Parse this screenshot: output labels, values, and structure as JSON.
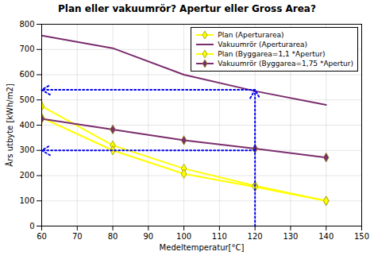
{
  "chart_data": {
    "type": "line",
    "title": "Plan eller vakuumrör? Apertur eller Gross Area?",
    "xlabel": "Medeltemperatur[°C]",
    "ylabel": "Års utbyte [kWh/m2]",
    "xlim": [
      60,
      150
    ],
    "ylim": [
      0,
      800
    ],
    "xticks": [
      60,
      70,
      80,
      90,
      100,
      110,
      120,
      130,
      140,
      150
    ],
    "yticks": [
      0,
      100,
      200,
      300,
      400,
      500,
      600,
      700,
      800
    ],
    "grid": true,
    "legend": "upper right",
    "x": [
      60,
      80,
      100,
      120,
      140
    ],
    "series": [
      {
        "name": "Plan (Aperturarea)",
        "color": "#ffff00",
        "marker": "diamond",
        "values": [
          475,
          320,
          228,
          160,
          100
        ]
      },
      {
        "name": "Vakuumrör (Aperturarea)",
        "color": "#7b2d6e",
        "marker": "none",
        "values": [
          755,
          705,
          600,
          535,
          480
        ]
      },
      {
        "name": "Plan (Byggarea=1,1 *Apertur)",
        "color": "#ffff00",
        "marker": "diamond",
        "values": [
          430,
          300,
          207,
          155,
          100
        ]
      },
      {
        "name": "Vakuumrör (Byggarea=1,75 *Apertur)",
        "color": "#7b2d6e",
        "marker": "diamond",
        "values": [
          425,
          383,
          340,
          307,
          272
        ]
      }
    ],
    "annotations": [
      {
        "x1": 120,
        "y1": 540,
        "x2": 60,
        "y2": 540,
        "color": "#0000ee",
        "line_style": "dotted"
      },
      {
        "x1": 120,
        "y1": 300,
        "x2": 60,
        "y2": 300,
        "color": "#0000ee",
        "line_style": "dotted"
      },
      {
        "x1": 120,
        "y1": 0,
        "x2": 120,
        "y2": 540,
        "color": "#0000ee",
        "line_style": "dotted"
      }
    ]
  }
}
